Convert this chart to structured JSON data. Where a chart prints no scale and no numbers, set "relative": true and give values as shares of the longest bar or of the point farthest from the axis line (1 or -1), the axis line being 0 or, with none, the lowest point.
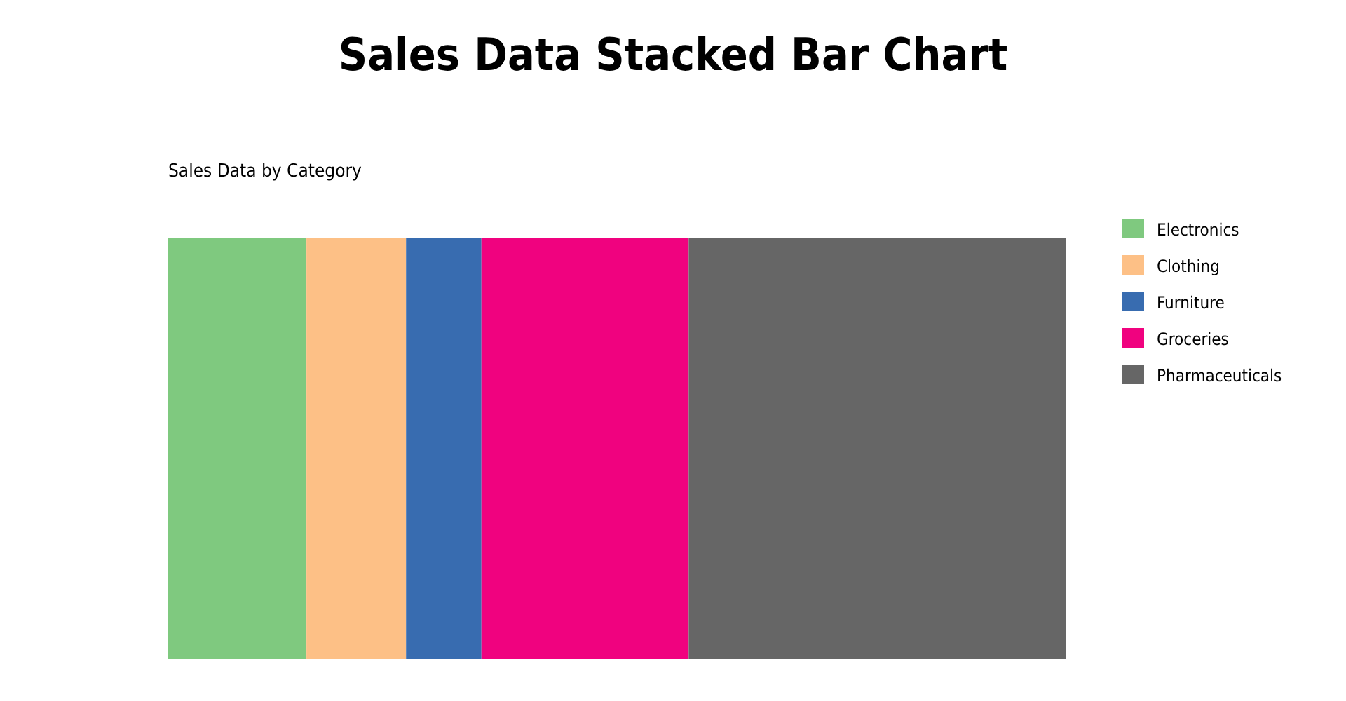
{
  "chart_data": {
    "type": "bar",
    "title": "Sales Data Stacked Bar Chart",
    "subtitle": "Sales Data by Category",
    "orientation": "horizontal",
    "stacked": true,
    "relative": true,
    "legend": "right",
    "categories": [
      null
    ],
    "series": [
      {
        "name": "Electronics",
        "color": "#7fc97f",
        "values": [
          0.154
        ]
      },
      {
        "name": "Clothing",
        "color": "#fdc086",
        "values": [
          0.111
        ]
      },
      {
        "name": "Furniture",
        "color": "#386cb0",
        "values": [
          0.084
        ]
      },
      {
        "name": "Groceries",
        "color": "#f0027f",
        "values": [
          0.231
        ]
      },
      {
        "name": "Pharmaceuticals",
        "color": "#666666",
        "values": [
          0.42
        ]
      }
    ]
  }
}
